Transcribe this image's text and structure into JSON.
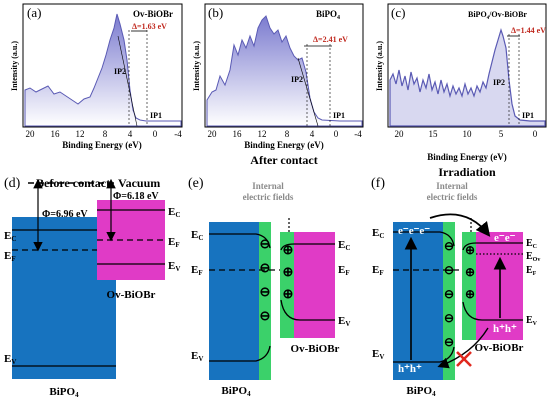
{
  "colors": {
    "plot_line": "#5a5ab4",
    "plot_fill": "#b7b7e3",
    "plot_fill_c": "#d8d8f0",
    "ann_red": "#c0281e",
    "bipo4_fill": "#1773bf",
    "ovbiobr_fill": "#e03bc6",
    "space_charge": "#3bd16a",
    "arrow_red": "#e0281e"
  },
  "panels_xps": [
    {
      "id": "a",
      "letter": "(a)",
      "title": "Ov-BiOBr",
      "delta": "Δ=1.63 eV",
      "ip1": "IP1",
      "ip2": "IP2",
      "ylabel": "Intensity (a.u.)",
      "xlabel": "Binding Energy (eV)",
      "ticks": [
        "20",
        "16",
        "12",
        "8",
        "4",
        "0",
        "-4"
      ]
    },
    {
      "id": "b",
      "letter": "(b)",
      "title": "BiPO",
      "title_sub": "4",
      "delta": "Δ=2.41 eV",
      "ip1": "IP1",
      "ip2": "IP2",
      "ylabel": "Intensity (a.u.)",
      "xlabel": "Binding Energy (eV)",
      "ticks": [
        "20",
        "16",
        "12",
        "8",
        "4",
        "0",
        "-4"
      ]
    },
    {
      "id": "c",
      "letter": "(c)",
      "title": "BiPO",
      "title_sub": "4",
      "title_rest": "/Ov-BiOBr",
      "delta": "Δ=1.44 eV",
      "ip1": "IP1",
      "ip2": "IP2",
      "ylabel": "Intensity (a.u.)",
      "xlabel": "Binding Energy (eV)",
      "ticks": [
        "20",
        "15",
        "10",
        "5",
        "0"
      ]
    }
  ],
  "panel_d": {
    "letter": "(d)",
    "title": "Before contact",
    "vacuum": "Vacuum",
    "phi_left": "Φ=6.96 eV",
    "phi_right": "Φ=6.18 eV",
    "left_material": "BiPO",
    "left_sub": "4",
    "right_material": "Ov-BiOBr",
    "levels_left": [
      {
        "main": "E",
        "sub": "C"
      },
      {
        "main": "E",
        "sub": "F"
      },
      {
        "main": "E",
        "sub": "V"
      }
    ],
    "levels_right": [
      {
        "main": "E",
        "sub": "C"
      },
      {
        "main": "E",
        "sub": "F"
      },
      {
        "main": "E",
        "sub": "V"
      }
    ]
  },
  "panel_e": {
    "letter": "(e)",
    "title": "After contact",
    "field_label_1": "Internal",
    "field_label_2": "electric fields",
    "left_material": "BiPO",
    "left_sub": "4",
    "right_material": "Ov-BiOBr",
    "minus": "⊖",
    "plus": "⊕",
    "levels_left": [
      {
        "main": "E",
        "sub": "C"
      },
      {
        "main": "E",
        "sub": "F"
      },
      {
        "main": "E",
        "sub": "V"
      }
    ],
    "levels_right": [
      {
        "main": "E",
        "sub": "C"
      },
      {
        "main": "E",
        "sub": "F"
      },
      {
        "main": "E",
        "sub": "V"
      }
    ]
  },
  "panel_f": {
    "letter": "(f)",
    "title": "Irradiation",
    "field_label_1": "Internal",
    "field_label_2": "electric fields",
    "left_material": "BiPO",
    "left_sub": "4",
    "right_material": "Ov-BiOBr",
    "electrons_left": "e⁻e⁻e⁻",
    "electrons_right": "e⁻e⁻",
    "holes_left": "h⁺h⁺",
    "holes_right": "h⁺h⁺",
    "levels_left": [
      {
        "main": "E",
        "sub": "C"
      },
      {
        "main": "E",
        "sub": "F"
      },
      {
        "main": "E",
        "sub": "V"
      }
    ],
    "levels_right": [
      {
        "main": "E",
        "sub": "C"
      },
      {
        "main": "E",
        "sub": "Ov"
      },
      {
        "main": "E",
        "sub": "F"
      },
      {
        "main": "E",
        "sub": "V"
      }
    ]
  }
}
